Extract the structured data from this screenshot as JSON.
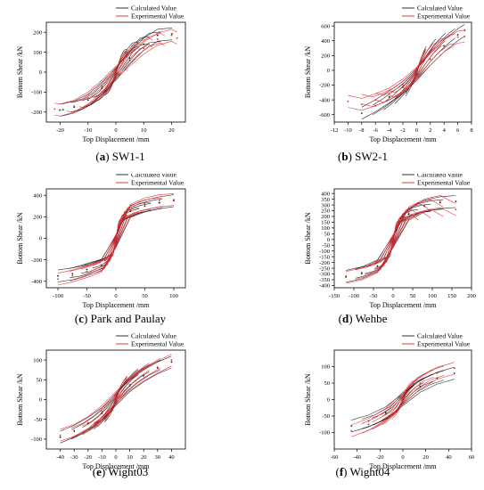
{
  "colors": {
    "calculated": "#1a1a1a",
    "experimental": "#e8232a"
  },
  "panels": [
    {
      "caption_letter": "a",
      "caption_text": "SW1-1",
      "chart_data": {
        "type": "line",
        "xlabel": "Top Displacement /mm",
        "ylabel": "Bottom Shear /kN",
        "xlim": [
          -25,
          25
        ],
        "ylim": [
          -250,
          250
        ],
        "xticks": [
          -20,
          -10,
          0,
          10,
          20
        ],
        "yticks": [
          -200,
          -100,
          0,
          100,
          200
        ],
        "legend": {
          "position": "top-right",
          "labels": [
            "Calculated Value",
            "Experimental Value"
          ]
        },
        "series": [
          {
            "name": "Calculated Value",
            "color": "calculated",
            "x": [
              -20.2,
              -19,
              -15,
              -10,
              -5,
              0,
              5,
              10,
              15,
              20.2
            ],
            "y": [
              -190,
              -188,
              -175,
              -140,
              -80,
              -10,
              70,
              140,
              185,
              192
            ]
          },
          {
            "name": "Experimental Value",
            "color": "experimental",
            "x": [
              -22,
              -20,
              -15,
              -10,
              -5,
              0,
              5,
              10,
              15,
              20,
              22
            ],
            "y": [
              -185,
              -190,
              -170,
              -130,
              -70,
              0,
              60,
              120,
              165,
              185,
              170
            ]
          }
        ]
      }
    },
    {
      "caption_letter": "b",
      "caption_text": "SW2-1",
      "chart_data": {
        "type": "line",
        "xlabel": "Top Displacement /mm",
        "ylabel": "Bottom Shear /kN",
        "xlim": [
          -12,
          8
        ],
        "ylim": [
          -700,
          650
        ],
        "xticks": [
          -12,
          -10,
          -8,
          -6,
          -4,
          -2,
          0,
          2,
          4,
          6,
          8
        ],
        "yticks": [
          -600,
          -400,
          -200,
          0,
          200,
          400,
          600
        ],
        "legend": {
          "position": "top-right",
          "labels": [
            "Calculated Value",
            "Experimental Value"
          ]
        },
        "series": [
          {
            "name": "Calculated Value",
            "color": "calculated",
            "x": [
              -8,
              -6,
              -4,
              -2,
              0,
              2,
              4,
              6,
              7
            ],
            "y": [
              -580,
              -480,
              -360,
              -230,
              -60,
              150,
              330,
              480,
              540
            ]
          },
          {
            "name": "Experimental Value",
            "color": "experimental",
            "x": [
              -10,
              -8,
              -6,
              -4,
              -2,
              0,
              2,
              4,
              6,
              7
            ],
            "y": [
              -420,
              -460,
              -400,
              -320,
              -200,
              -40,
              150,
              330,
              450,
              460
            ]
          }
        ]
      }
    },
    {
      "caption_letter": "c",
      "caption_text": "Park and Paulay",
      "chart_data": {
        "type": "line",
        "xlabel": "Top Displacement /mm",
        "ylabel": "Bottom Shear /kN",
        "xlim": [
          -120,
          120
        ],
        "ylim": [
          -460,
          460
        ],
        "xticks": [
          -100,
          -50,
          0,
          50,
          100
        ],
        "yticks": [
          -400,
          -200,
          0,
          200,
          400
        ],
        "legend": {
          "position": "top-right",
          "labels": [
            "Calculated Value",
            "Experimental Value"
          ]
        },
        "series": [
          {
            "name": "Calculated Value",
            "color": "calculated",
            "x": [
              -100,
              -75,
              -50,
              -25,
              0,
              25,
              50,
              75,
              100
            ],
            "y": [
              -350,
              -330,
              -290,
              -250,
              -30,
              250,
              300,
              330,
              350
            ]
          },
          {
            "name": "Experimental Value",
            "color": "experimental",
            "x": [
              -100,
              -75,
              -50,
              -25,
              0,
              25,
              50,
              75,
              100
            ],
            "y": [
              -380,
              -350,
              -310,
              -260,
              -20,
              260,
              320,
              350,
              360
            ]
          }
        ]
      }
    },
    {
      "caption_letter": "d",
      "caption_text": "Wehbe",
      "chart_data": {
        "type": "line",
        "xlabel": "Top Displacement /mm",
        "ylabel": "Bottom Shear /kN",
        "xlim": [
          -150,
          200
        ],
        "ylim": [
          -420,
          440
        ],
        "xticks": [
          -150,
          -100,
          -50,
          0,
          50,
          100,
          150,
          200
        ],
        "yticks": [
          -400,
          -350,
          -300,
          -250,
          -200,
          -150,
          -100,
          -50,
          0,
          50,
          100,
          150,
          200,
          250,
          300,
          350,
          400
        ],
        "legend": {
          "position": "top-right",
          "labels": [
            "Calculated Value",
            "Experimental Value"
          ]
        },
        "series": [
          {
            "name": "Calculated Value",
            "color": "calculated",
            "x": [
              -120,
              -80,
              -40,
              0,
              40,
              80,
              120,
              160
            ],
            "y": [
              -320,
              -290,
              -230,
              -20,
              220,
              290,
              320,
              330
            ]
          },
          {
            "name": "Experimental Value",
            "color": "experimental",
            "x": [
              -120,
              -80,
              -40,
              0,
              40,
              80,
              120,
              160
            ],
            "y": [
              -330,
              -300,
              -240,
              -10,
              230,
              300,
              330,
              260
            ]
          }
        ]
      }
    },
    {
      "caption_letter": "e",
      "caption_text": "Wight03",
      "chart_data": {
        "type": "line",
        "xlabel": "Top Displacement /mm",
        "ylabel": "Bottom Shear /kN",
        "xlim": [
          -50,
          50
        ],
        "ylim": [
          -125,
          125
        ],
        "xticks": [
          -40,
          -30,
          -20,
          -10,
          0,
          10,
          20,
          30,
          40
        ],
        "yticks": [
          -100,
          -50,
          0,
          50,
          100
        ],
        "legend": {
          "position": "top-right",
          "labels": [
            "Calculated Value",
            "Experimental Value"
          ]
        },
        "series": [
          {
            "name": "Calculated Value",
            "color": "calculated",
            "x": [
              -40,
              -30,
              -20,
              -10,
              0,
              10,
              20,
              30,
              40
            ],
            "y": [
              -95,
              -80,
              -60,
              -35,
              0,
              35,
              60,
              80,
              95
            ]
          },
          {
            "name": "Experimental Value",
            "color": "experimental",
            "x": [
              -40,
              -30,
              -20,
              -10,
              0,
              10,
              20,
              30,
              40
            ],
            "y": [
              -90,
              -78,
              -58,
              -30,
              5,
              38,
              62,
              82,
              100
            ]
          }
        ]
      }
    },
    {
      "caption_letter": "f",
      "caption_text": "Wight04",
      "chart_data": {
        "type": "line",
        "xlabel": "Top Displacement /mm",
        "ylabel": "Bottom Shear /kN",
        "xlim": [
          -60,
          60
        ],
        "ylim": [
          -150,
          150
        ],
        "xticks": [
          -60,
          -40,
          -20,
          0,
          20,
          40,
          60
        ],
        "yticks": [
          -100,
          -50,
          0,
          50,
          100
        ],
        "legend": {
          "position": "top-right",
          "labels": [
            "Calculated Value",
            "Experimental Value"
          ]
        },
        "series": [
          {
            "name": "Calculated Value",
            "color": "calculated",
            "x": [
              -45,
              -30,
              -15,
              0,
              15,
              30,
              45
            ],
            "y": [
              -80,
              -65,
              -40,
              0,
              40,
              65,
              80
            ]
          },
          {
            "name": "Experimental Value",
            "color": "experimental",
            "x": [
              -45,
              -30,
              -15,
              0,
              15,
              30,
              45
            ],
            "y": [
              -95,
              -75,
              -45,
              5,
              50,
              80,
              95
            ]
          }
        ]
      }
    }
  ]
}
